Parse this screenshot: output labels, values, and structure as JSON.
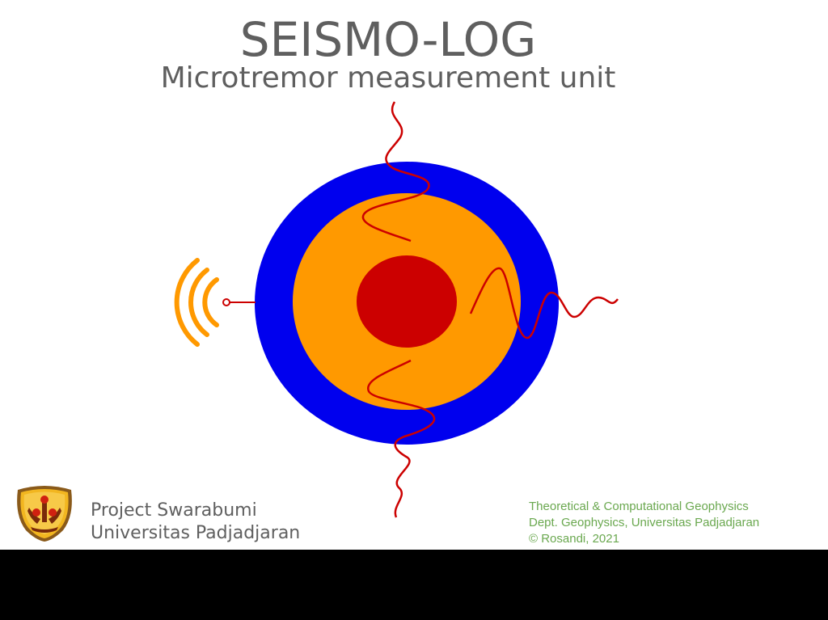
{
  "header": {
    "title": "SEISMO-LOG",
    "subtitle": "Microtremor measurement unit"
  },
  "footer": {
    "project_line1": "Project Swarabumi",
    "project_line2": "Universitas Padjadjaran",
    "credit_line1": "Theoretical & Computational Geophysics",
    "credit_line2": "Dept. Geophysics, Universitas Padjadjaran",
    "credit_line3": "© Rosandi, 2021"
  },
  "colors": {
    "outer_ring": "#0000ee",
    "middle_disc": "#ff9900",
    "core": "#cc0000",
    "waves": "#cc0000",
    "signal_arcs": "#ff9900",
    "title_text": "#5f5f5f",
    "credits_text": "#6aa84f"
  },
  "icons": {
    "logo": "university-seal-icon",
    "signal": "wireless-signal-icon"
  }
}
